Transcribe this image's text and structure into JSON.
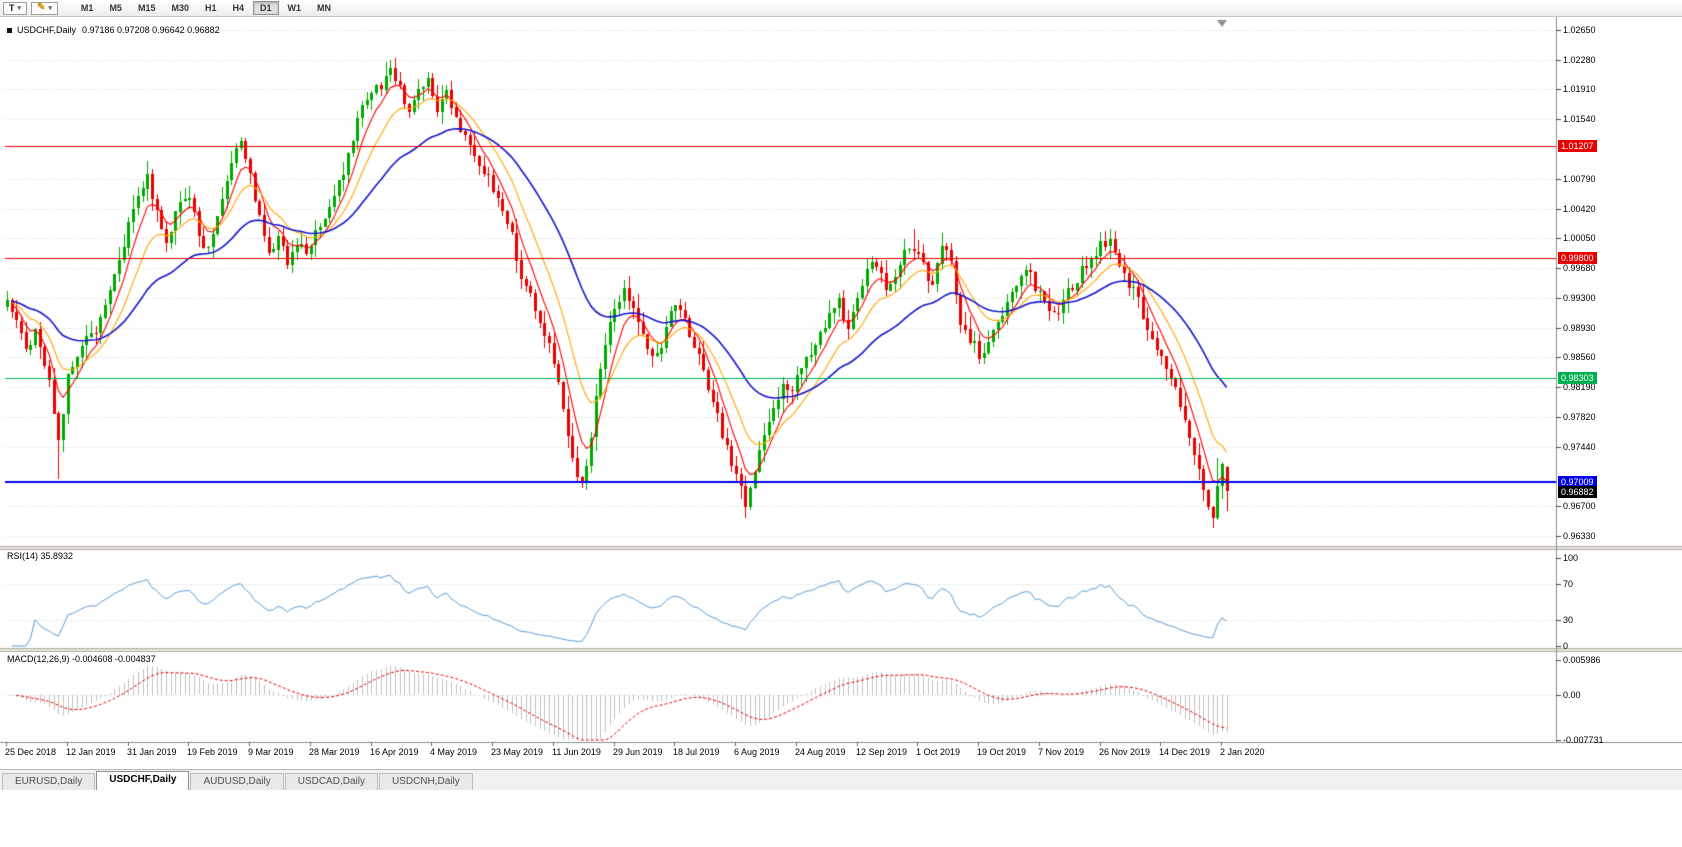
{
  "toolbar": {
    "text_tool_label": "T",
    "timeframes": [
      "M1",
      "M5",
      "M15",
      "M30",
      "H1",
      "H4",
      "D1",
      "W1",
      "MN"
    ],
    "active_timeframe": "D1"
  },
  "icons": {
    "pencil": "✎",
    "caret_down": "▾"
  },
  "chart": {
    "title": "USDCHF,Daily",
    "ohlc": "0.97186 0.97208 0.96642 0.96882",
    "last_candle": {
      "open": 0.97186,
      "high": 0.97208,
      "low": 0.96642,
      "close": 0.96882
    },
    "price_axis": {
      "max": 1.0265,
      "min": 0.9633,
      "labels": [
        "1.02650",
        "1.02280",
        "1.01910",
        "1.01540",
        "1.00790",
        "1.00420",
        "1.00050",
        "0.99680",
        "0.99300",
        "0.98930",
        "0.98560",
        "0.98190",
        "0.97820",
        "0.97440",
        "0.96700",
        "0.96330"
      ],
      "highlighted": [
        {
          "value": "1.01207",
          "color": "#e80000"
        },
        {
          "value": "0.99800",
          "color": "#e80000"
        },
        {
          "value": "0.98303",
          "color": "#00b050"
        },
        {
          "value": "0.97009",
          "color": "#0000e8"
        },
        {
          "value": "0.96882",
          "color": "#000000"
        }
      ]
    },
    "hlines": [
      {
        "price": 1.01207,
        "color": "#e80000",
        "width": 1
      },
      {
        "price": 0.998,
        "color": "#e80000",
        "width": 1
      },
      {
        "price": 0.98303,
        "color": "#00b050",
        "width": 1
      },
      {
        "price": 0.97009,
        "color": "#0000e8",
        "width": 2
      }
    ]
  },
  "indicators": {
    "rsi": {
      "label": "RSI(14) 35.8932",
      "period": 14,
      "value": 35.8932,
      "levels": [
        "100",
        "70",
        "30",
        "0"
      ],
      "line_color": "#5b9bd5"
    },
    "macd": {
      "label": "MACD(12,26,9) -0.004608 -0.004837",
      "fast": 12,
      "slow": 26,
      "signal": 9,
      "macd_value": -0.004608,
      "signal_value": -0.004837,
      "levels": [
        "0.005986",
        "0.00",
        "-0.007731"
      ],
      "histogram_color": "#c0c0c0",
      "signal_color": "#e80000"
    }
  },
  "chart_data": {
    "type": "candlestick",
    "symbol": "USDCHF",
    "timeframe": "Daily",
    "n_candles": 262,
    "y_range": [
      0.9633,
      1.0265
    ],
    "up_color": "#00a800",
    "down_color": "#e80000",
    "dates": [
      "25 Dec 2018",
      "12 Jan 2019",
      "31 Jan 2019",
      "19 Feb 2019",
      "9 Mar 2019",
      "28 Mar 2019",
      "16 Apr 2019",
      "4 May 2019",
      "23 May 2019",
      "11 Jun 2019",
      "29 Jun 2019",
      "18 Jul 2019",
      "6 Aug 2019",
      "24 Aug 2019",
      "12 Sep 2019",
      "1 Oct 2019",
      "19 Oct 2019",
      "7 Nov 2019",
      "26 Nov 2019",
      "14 Dec 2019",
      "2 Jan 2020"
    ],
    "candles_per_date_label": 13,
    "moving_averages": [
      {
        "type": "ema",
        "period": 6,
        "color": "#ff0000"
      },
      {
        "type": "ema",
        "period": 13,
        "color": "#ffa500"
      },
      {
        "type": "ema",
        "period": 34,
        "color": "#1515cc"
      }
    ],
    "close_anchors": [
      [
        0,
        0.993
      ],
      [
        2,
        0.9895
      ],
      [
        4,
        0.9868
      ],
      [
        6,
        0.9888
      ],
      [
        8,
        0.9852
      ],
      [
        10,
        0.979
      ],
      [
        11,
        0.9748
      ],
      [
        13,
        0.9835
      ],
      [
        16,
        0.9868
      ],
      [
        19,
        0.989
      ],
      [
        22,
        0.9935
      ],
      [
        24,
        0.998
      ],
      [
        26,
        1.002
      ],
      [
        28,
        1.005
      ],
      [
        30,
        1.008
      ],
      [
        32,
        1.004
      ],
      [
        34,
        1.0
      ],
      [
        36,
        1.004
      ],
      [
        38,
        1.006
      ],
      [
        40,
        1.004
      ],
      [
        42,
        0.999
      ],
      [
        44,
        1.001
      ],
      [
        46,
        1.005
      ],
      [
        48,
        1.01
      ],
      [
        50,
        1.0122
      ],
      [
        52,
        1.008
      ],
      [
        54,
        1.0035
      ],
      [
        56,
        0.999
      ],
      [
        58,
        1.0005
      ],
      [
        60,
        0.9975
      ],
      [
        62,
        1.0
      ],
      [
        64,
        0.999
      ],
      [
        66,
        1.001
      ],
      [
        68,
        1.0035
      ],
      [
        70,
        1.006
      ],
      [
        72,
        1.009
      ],
      [
        74,
        1.013
      ],
      [
        76,
        1.0165
      ],
      [
        78,
        1.019
      ],
      [
        80,
        1.019
      ],
      [
        82,
        1.022
      ],
      [
        83,
        1.02
      ],
      [
        84,
        1.019
      ],
      [
        86,
        1.016
      ],
      [
        88,
        1.019
      ],
      [
        90,
        1.0205
      ],
      [
        92,
        1.017
      ],
      [
        94,
        1.0185
      ],
      [
        96,
        1.015
      ],
      [
        98,
        1.013
      ],
      [
        100,
        1.011
      ],
      [
        102,
        1.009
      ],
      [
        104,
        1.007
      ],
      [
        106,
        1.004
      ],
      [
        108,
        1.0005
      ],
      [
        110,
        0.996
      ],
      [
        112,
        0.993
      ],
      [
        114,
        0.99
      ],
      [
        116,
        0.987
      ],
      [
        118,
        0.982
      ],
      [
        120,
        0.976
      ],
      [
        122,
        0.9705
      ],
      [
        123,
        0.97
      ],
      [
        124,
        0.972
      ],
      [
        126,
        0.98
      ],
      [
        128,
        0.987
      ],
      [
        130,
        0.992
      ],
      [
        132,
        0.994
      ],
      [
        134,
        0.992
      ],
      [
        136,
        0.988
      ],
      [
        138,
        0.985
      ],
      [
        140,
        0.9875
      ],
      [
        142,
        0.991
      ],
      [
        144,
        0.992
      ],
      [
        146,
        0.988
      ],
      [
        148,
        0.9855
      ],
      [
        150,
        0.982
      ],
      [
        152,
        0.978
      ],
      [
        154,
        0.974
      ],
      [
        156,
        0.9705
      ],
      [
        157,
        0.969
      ],
      [
        158,
        0.9675
      ],
      [
        160,
        0.972
      ],
      [
        162,
        0.976
      ],
      [
        164,
        0.979
      ],
      [
        166,
        0.9825
      ],
      [
        168,
        0.9815
      ],
      [
        170,
        0.984
      ],
      [
        172,
        0.986
      ],
      [
        174,
        0.989
      ],
      [
        176,
        0.991
      ],
      [
        178,
        0.9925
      ],
      [
        180,
        0.9885
      ],
      [
        182,
        0.9935
      ],
      [
        184,
        0.996
      ],
      [
        186,
        0.9975
      ],
      [
        188,
        0.994
      ],
      [
        190,
        0.9955
      ],
      [
        192,
        0.9985
      ],
      [
        194,
        0.9995
      ],
      [
        196,
        0.9975
      ],
      [
        198,
        0.994
      ],
      [
        200,
        1.0
      ],
      [
        202,
        0.997
      ],
      [
        204,
        0.99
      ],
      [
        206,
        0.988
      ],
      [
        208,
        0.986
      ],
      [
        210,
        0.9875
      ],
      [
        212,
        0.99
      ],
      [
        214,
        0.9925
      ],
      [
        216,
        0.995
      ],
      [
        218,
        0.9965
      ],
      [
        220,
        0.9945
      ],
      [
        222,
        0.992
      ],
      [
        224,
        0.9905
      ],
      [
        226,
        0.9925
      ],
      [
        228,
        0.9945
      ],
      [
        230,
        0.9965
      ],
      [
        232,
        0.998
      ],
      [
        234,
        0.9995
      ],
      [
        236,
        1.0
      ],
      [
        238,
        0.9975
      ],
      [
        240,
        0.995
      ],
      [
        242,
        0.9925
      ],
      [
        244,
        0.9895
      ],
      [
        246,
        0.9868
      ],
      [
        248,
        0.984
      ],
      [
        250,
        0.9815
      ],
      [
        252,
        0.978
      ],
      [
        254,
        0.974
      ],
      [
        256,
        0.969
      ],
      [
        257,
        0.9668
      ],
      [
        258,
        0.9655
      ],
      [
        259,
        0.97
      ],
      [
        260,
        0.9718
      ],
      [
        261,
        0.96882
      ]
    ],
    "high_overrides": [
      [
        50,
        1.0131
      ],
      [
        82,
        1.0228
      ],
      [
        90,
        1.0212
      ],
      [
        194,
        1.0016
      ],
      [
        236,
        1.0016
      ],
      [
        259,
        0.9731
      ]
    ],
    "low_overrides": [
      [
        11,
        0.9704
      ],
      [
        123,
        0.9693
      ],
      [
        158,
        0.9656
      ],
      [
        258,
        0.9643
      ]
    ]
  },
  "tabs": [
    {
      "label": "EURUSD,Daily",
      "active": false
    },
    {
      "label": "USDCHF,Daily",
      "active": true
    },
    {
      "label": "AUDUSD,Daily",
      "active": false
    },
    {
      "label": "USDCAD,Daily",
      "active": false
    },
    {
      "label": "USDCNH,Daily",
      "active": false
    }
  ]
}
